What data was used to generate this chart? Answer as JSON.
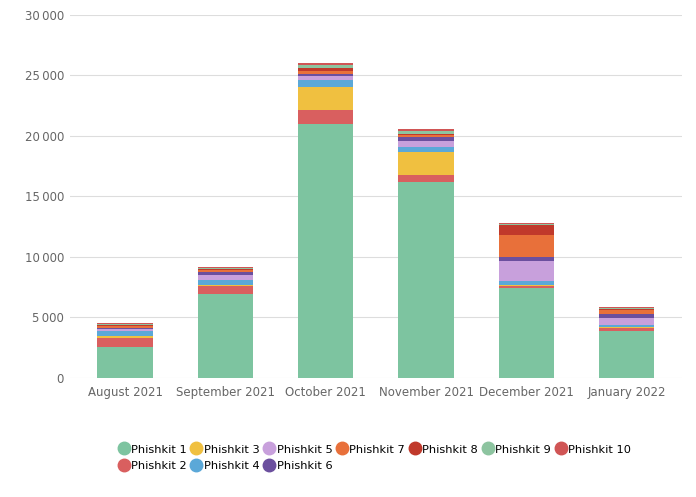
{
  "months": [
    "August 2021",
    "September 2021",
    "October 2021",
    "November 2021",
    "December 2021",
    "January 2022"
  ],
  "phishkits": {
    "Phishkit 1": [
      2500,
      6900,
      21000,
      16200,
      7400,
      3900
    ],
    "Phishkit 2": [
      750,
      650,
      1100,
      600,
      150,
      170
    ],
    "Phishkit 3": [
      200,
      150,
      1900,
      1900,
      100,
      130
    ],
    "Phishkit 4": [
      380,
      380,
      580,
      380,
      380,
      170
    ],
    "Phishkit 5": [
      170,
      450,
      350,
      500,
      1600,
      550
    ],
    "Phishkit 6": [
      120,
      250,
      220,
      300,
      380,
      350
    ],
    "Phishkit 7": [
      170,
      120,
      250,
      170,
      1750,
      300
    ],
    "Phishkit 8": [
      80,
      80,
      180,
      120,
      850,
      80
    ],
    "Phishkit 9": [
      80,
      80,
      280,
      200,
      120,
      80
    ],
    "Phishkit 10": [
      80,
      80,
      170,
      170,
      80,
      130
    ]
  },
  "colors": {
    "Phishkit 1": "#7dc4a0",
    "Phishkit 2": "#d95f5f",
    "Phishkit 3": "#f0c040",
    "Phishkit 4": "#5ba8d8",
    "Phishkit 5": "#c8a0dc",
    "Phishkit 6": "#6b4f9e",
    "Phishkit 7": "#e8703a",
    "Phishkit 8": "#c0392b",
    "Phishkit 9": "#8dc4a0",
    "Phishkit 10": "#d05555"
  },
  "ylim": [
    0,
    30000
  ],
  "yticks": [
    0,
    5000,
    10000,
    15000,
    20000,
    25000,
    30000
  ],
  "background_color": "#ffffff",
  "grid_color": "#dddddd",
  "bar_width": 0.55
}
